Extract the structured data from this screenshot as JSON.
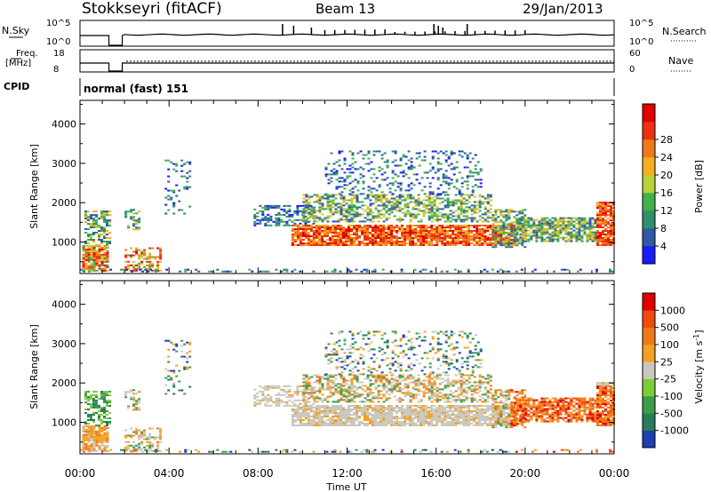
{
  "header": {
    "station": "Stokkseyri (fitACF)",
    "beam": "Beam 13",
    "date": "29/Jan/2013"
  },
  "top_panels": {
    "nsky_label": "N.Sky",
    "nsky_ticks": [
      "10^5",
      "10^0"
    ],
    "nsearch_label": "N.Search",
    "nsearch_ticks": [
      "10^5",
      "10^0"
    ],
    "freq_label": "Freq.",
    "freq_unit": "[MHz]",
    "freq_ticks": [
      "18",
      "8"
    ],
    "nave_label": "Nave",
    "nave_ticks": [
      "60",
      "0"
    ],
    "cpid_label": "CPID",
    "cpid_value": "normal (fast) 151"
  },
  "chart_data": [
    {
      "type": "heatmap",
      "name": "power",
      "ylabel": "Slant Range [km]",
      "y_ticks": [
        "1000",
        "2000",
        "3000",
        "4000"
      ],
      "y_values": [
        1000,
        2000,
        3000,
        4000
      ],
      "ylim": [
        200,
        4600
      ],
      "xlim": [
        0,
        24
      ],
      "colorbar_label": "Power [dB]",
      "colorbar_ticks": [
        "4",
        "8",
        "12",
        "16",
        "20",
        "24",
        "28"
      ],
      "colorbar_colors": [
        "#1a1aff",
        "#2e5aa6",
        "#2f8f6b",
        "#43b04a",
        "#b8d23a",
        "#f2b01f",
        "#f07a1a",
        "#ee3010",
        "#e00000"
      ]
    },
    {
      "type": "heatmap",
      "name": "velocity",
      "ylabel": "Slant Range [km]",
      "y_ticks": [
        "1000",
        "2000",
        "3000",
        "4000"
      ],
      "y_values": [
        1000,
        2000,
        3000,
        4000
      ],
      "ylim": [
        200,
        4600
      ],
      "xlim": [
        0,
        24
      ],
      "colorbar_label": "Velocity [m s",
      "colorbar_label_sup": "-1",
      "colorbar_label_end": "]",
      "colorbar_ticks": [
        "1000",
        "500",
        "100",
        "25",
        "-25",
        "-100",
        "-500",
        "-1000"
      ],
      "colorbar_colors": [
        "#1f3fb0",
        "#2a7a5e",
        "#3a9d4a",
        "#7fcc3a",
        "#c8c8c0",
        "#f5a020",
        "#f07818",
        "#ee4a10",
        "#e00000"
      ]
    }
  ],
  "x_axis": {
    "ticks": [
      "00:00",
      "04:00",
      "08:00",
      "12:00",
      "16:00",
      "20:00",
      "00:00"
    ],
    "hours": [
      0,
      4,
      8,
      12,
      16,
      20,
      24
    ],
    "label": "Time UT"
  }
}
